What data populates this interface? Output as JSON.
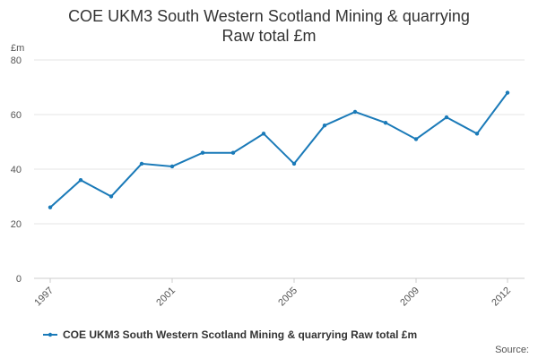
{
  "chart_data": {
    "type": "line",
    "title": [
      "COE UKM3 South Western Scotland Mining & quarrying",
      "Raw total £m"
    ],
    "y_label": "£m",
    "source": "Source:",
    "x": [
      1997,
      1998,
      1999,
      2000,
      2001,
      2002,
      2003,
      2004,
      2005,
      2006,
      2007,
      2008,
      2009,
      2010,
      2011,
      2012
    ],
    "series": [
      {
        "name": "COE UKM3 South Western Scotland Mining & quarrying Raw total £m",
        "color": "#1a7ab8",
        "values": [
          26,
          36,
          30,
          42,
          41,
          46,
          46,
          53,
          42,
          56,
          61,
          57,
          51,
          59,
          53,
          68
        ]
      }
    ],
    "xlim": [
      1997,
      2012
    ],
    "xticks": [
      1997,
      2001,
      2005,
      2009,
      2012
    ],
    "ylim": [
      0,
      80
    ],
    "yticks": [
      0,
      20,
      40,
      60,
      80
    ],
    "grid": true
  }
}
